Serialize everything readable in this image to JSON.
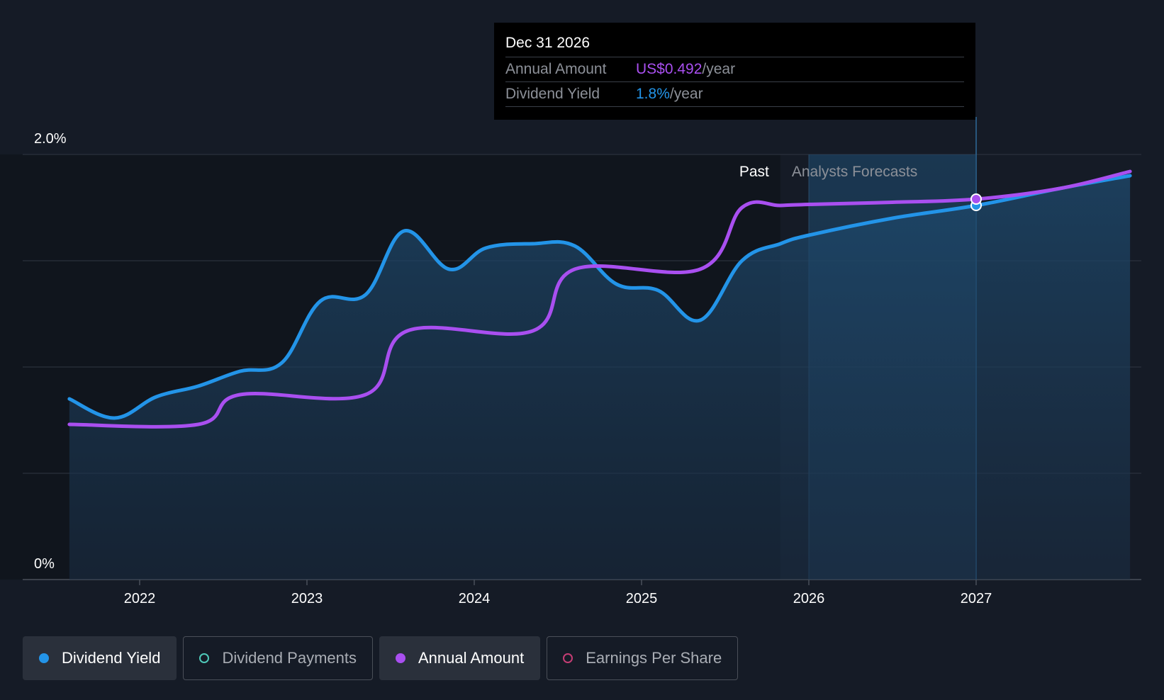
{
  "chart_data": {
    "type": "line",
    "title": "",
    "xlabel": "",
    "ylabel": "",
    "x_ticks": [
      "2022",
      "2023",
      "2024",
      "2025",
      "2026",
      "2027"
    ],
    "y_ticks": [
      "0%",
      "2.0%"
    ],
    "ylim": [
      0,
      2.0
    ],
    "regions": {
      "past_label": "Past",
      "forecast_label": "Analysts Forecasts",
      "past_end": 2025.83
    },
    "hover_x": 2027.0,
    "series": [
      {
        "name": "Dividend Yield",
        "color": "#2394e8",
        "x": [
          2021.58,
          2021.85,
          2022.1,
          2022.35,
          2022.6,
          2022.85,
          2023.08,
          2023.35,
          2023.58,
          2023.85,
          2024.07,
          2024.35,
          2024.6,
          2024.85,
          2025.1,
          2025.35,
          2025.6,
          2025.83,
          2026.0,
          2026.5,
          2027.0,
          2027.5,
          2027.92
        ],
        "y": [
          0.85,
          0.76,
          0.86,
          0.91,
          0.98,
          1.02,
          1.31,
          1.34,
          1.64,
          1.46,
          1.56,
          1.58,
          1.57,
          1.39,
          1.36,
          1.22,
          1.5,
          1.58,
          1.62,
          1.7,
          1.76,
          1.84,
          1.9
        ]
      },
      {
        "name": "Annual Amount",
        "color": "#a94ff0",
        "x": [
          2021.58,
          2022.35,
          2022.6,
          2023.35,
          2023.6,
          2024.35,
          2024.6,
          2025.35,
          2025.6,
          2025.83,
          2026.0,
          2026.5,
          2027.0,
          2027.5,
          2027.92
        ],
        "y": [
          0.73,
          0.73,
          0.87,
          0.87,
          1.17,
          1.17,
          1.46,
          1.46,
          1.75,
          1.76,
          1.765,
          1.775,
          1.79,
          1.84,
          1.92
        ]
      }
    ],
    "tooltip": {
      "date": "Dec 31 2026",
      "rows": [
        {
          "label": "Annual Amount",
          "value": "US$0.492",
          "unit": "/year",
          "color": "#a94ff0"
        },
        {
          "label": "Dividend Yield",
          "value": "1.8%",
          "unit": "/year",
          "color": "#2394e8"
        }
      ]
    }
  },
  "legend": [
    {
      "label": "Dividend Yield",
      "color": "#2394e8",
      "style": "filled",
      "active": true
    },
    {
      "label": "Dividend Payments",
      "color": "#4fc9b9",
      "style": "hollow",
      "active": false
    },
    {
      "label": "Annual Amount",
      "color": "#a94ff0",
      "style": "filled",
      "active": true
    },
    {
      "label": "Earnings Per Share",
      "color": "#c43d74",
      "style": "hollow",
      "active": false
    }
  ]
}
